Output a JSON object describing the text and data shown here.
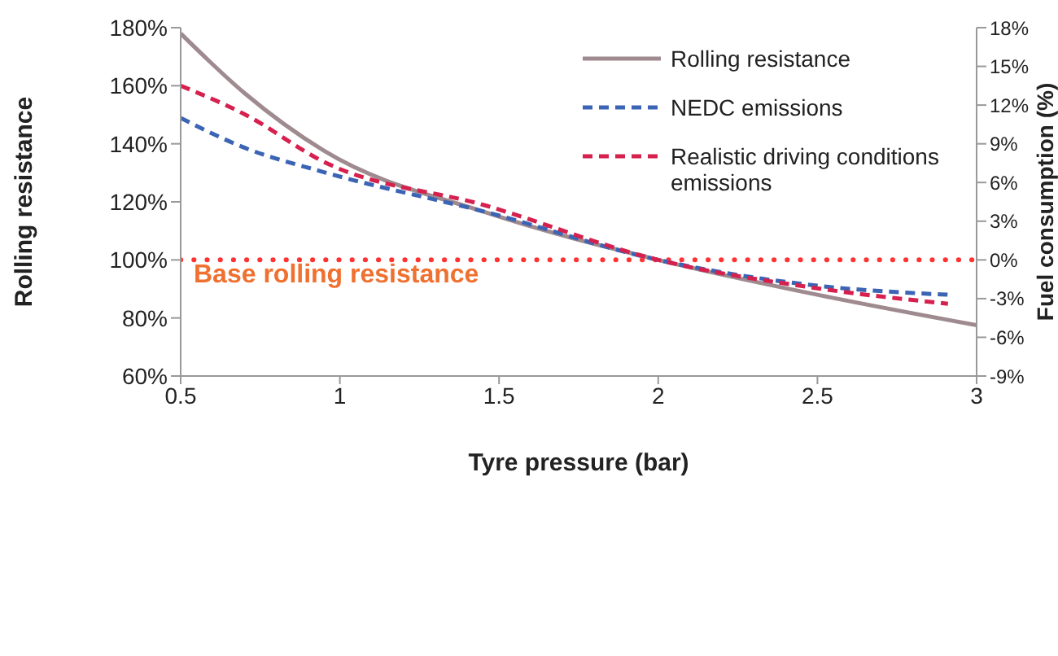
{
  "chart_data": {
    "type": "line",
    "xlabel": "Tyre pressure (bar)",
    "ylabel": "Rolling resistance",
    "y2label": "Fuel consumption (%)",
    "xlim": [
      0.5,
      3
    ],
    "xticks": [
      0.5,
      1,
      1.5,
      2,
      2.5,
      3
    ],
    "ylim": [
      60,
      180
    ],
    "yticks": [
      {
        "value": 60,
        "label": "60%"
      },
      {
        "value": 80,
        "label": "80%"
      },
      {
        "value": 100,
        "label": "100%"
      },
      {
        "value": 120,
        "label": "120%"
      },
      {
        "value": 140,
        "label": "140%"
      },
      {
        "value": 160,
        "label": "160%"
      },
      {
        "value": 180,
        "label": "180%"
      }
    ],
    "y2lim": [
      -9,
      18
    ],
    "y2ticks": [
      {
        "value": -9,
        "label": "-9%"
      },
      {
        "value": -6,
        "label": "-6%"
      },
      {
        "value": -3,
        "label": "-3%"
      },
      {
        "value": 0,
        "label": "0%"
      },
      {
        "value": 3,
        "label": "3%"
      },
      {
        "value": 6,
        "label": "6%"
      },
      {
        "value": 9,
        "label": "9%"
      },
      {
        "value": 12,
        "label": "12%"
      },
      {
        "value": 15,
        "label": "15%"
      },
      {
        "value": 18,
        "label": "18%"
      }
    ],
    "series": [
      {
        "name": "Rolling resistance",
        "color": "#9e8a8f",
        "line_style": "solid",
        "x": [
          0.5,
          0.7,
          0.95,
          1.46,
          2,
          2.5,
          3
        ],
        "values": [
          178,
          157.5,
          137.6,
          116.3,
          100,
          88,
          77.5
        ]
      },
      {
        "name": "NEDC emissions",
        "color": "#3c64b4",
        "line_style": "dashed",
        "axis": "y2",
        "x": [
          0.5,
          0.7,
          0.95,
          1.46,
          2,
          2.5,
          2.91
        ],
        "values": [
          11,
          8.7,
          6.8,
          3.7,
          0,
          -2,
          -2.7
        ]
      },
      {
        "name": "Realistic driving conditions emissions",
        "color": "#d6204e",
        "line_style": "dashed",
        "axis": "y2",
        "x": [
          0.5,
          0.7,
          0.95,
          1.46,
          2,
          2.5,
          2.91
        ],
        "values": [
          13.5,
          11.3,
          7.6,
          4.2,
          0,
          -2.2,
          -3.4
        ]
      }
    ],
    "ref_lines": [
      {
        "axis": "y",
        "value": 100,
        "label": "Base rolling resistance",
        "color": "#ff3333",
        "line_style": "dotted"
      }
    ],
    "legend": "top right",
    "marker": "none",
    "grid": false
  }
}
